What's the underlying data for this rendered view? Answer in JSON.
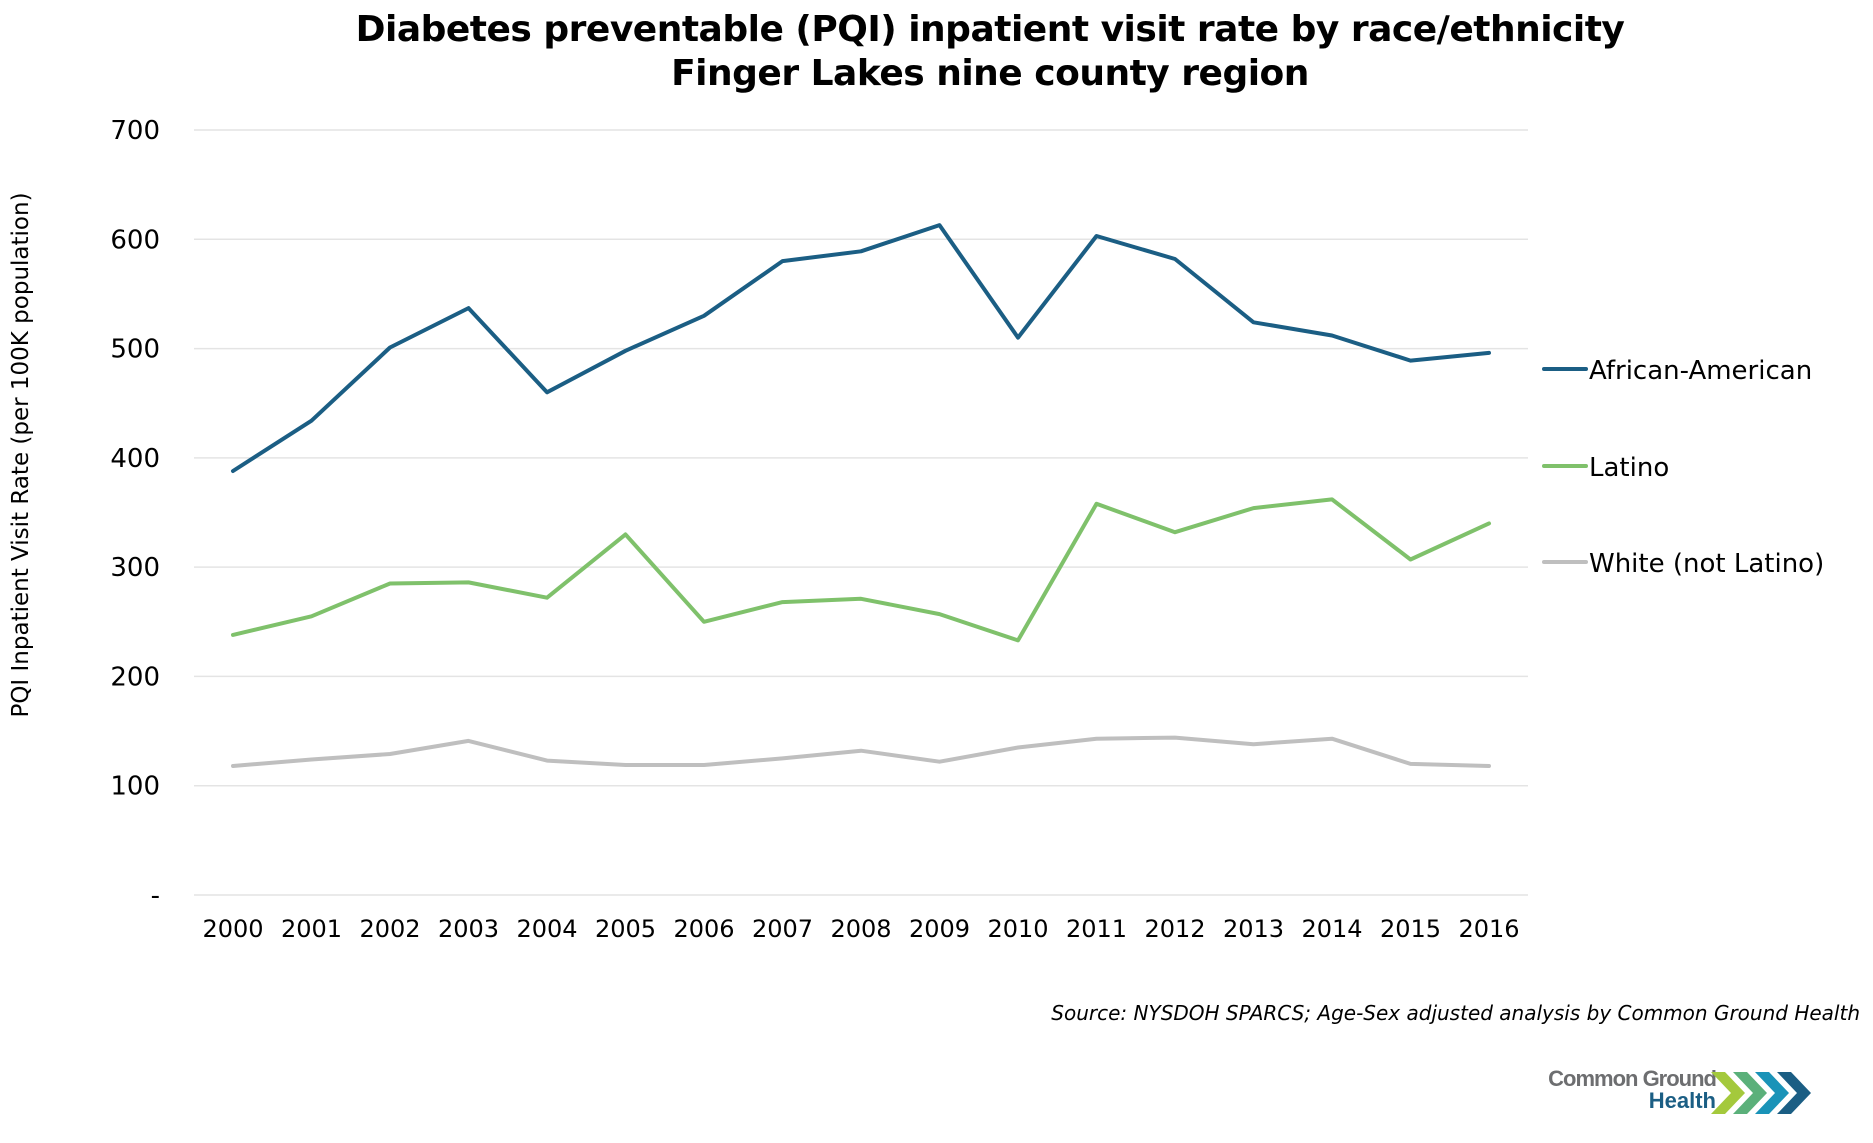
{
  "title": {
    "line1": "Diabetes preventable (PQI) inpatient visit rate by race/ethnicity",
    "line2": "Finger Lakes nine county region"
  },
  "source": "Source: NYSDOH SPARCS; Age-Sex adjusted analysis by Common Ground Health",
  "logo": {
    "line1": "Common Ground",
    "line2": "Health",
    "icon": "chevrons-icon",
    "colors": [
      "#a4c93c",
      "#5bb07a",
      "#1a93b8",
      "#1b5e84"
    ]
  },
  "chart_data": {
    "type": "line",
    "title": "Diabetes preventable (PQI) inpatient visit rate by race/ethnicity — Finger Lakes nine county region",
    "xlabel": "",
    "ylabel": "PQI Inpatient Visit Rate (per 100K population)",
    "ylim": [
      0,
      700
    ],
    "yticks": [
      0,
      100,
      200,
      300,
      400,
      500,
      600,
      700
    ],
    "ytick_labels": [
      "-",
      "100",
      "200",
      "300",
      "400",
      "500",
      "600",
      "700"
    ],
    "grid": true,
    "legend_position": "right",
    "x": [
      "2000",
      "2001",
      "2002",
      "2003",
      "2004",
      "2005",
      "2006",
      "2007",
      "2008",
      "2009",
      "2010",
      "2011",
      "2012",
      "2013",
      "2014",
      "2015",
      "2016"
    ],
    "series": [
      {
        "name": "African-American",
        "color": "#1b5e84",
        "values": [
          388,
          434,
          501,
          537,
          460,
          498,
          530,
          580,
          589,
          613,
          510,
          603,
          582,
          524,
          512,
          489,
          496
        ]
      },
      {
        "name": "Latino",
        "color": "#7fc16b",
        "values": [
          238,
          255,
          285,
          286,
          272,
          330,
          250,
          268,
          271,
          257,
          233,
          358,
          332,
          354,
          362,
          307,
          340
        ]
      },
      {
        "name": "White (not Latino)",
        "color": "#bfbfbf",
        "values": [
          118,
          124,
          129,
          141,
          123,
          119,
          119,
          125,
          132,
          122,
          135,
          143,
          144,
          138,
          143,
          120,
          118
        ]
      }
    ]
  }
}
